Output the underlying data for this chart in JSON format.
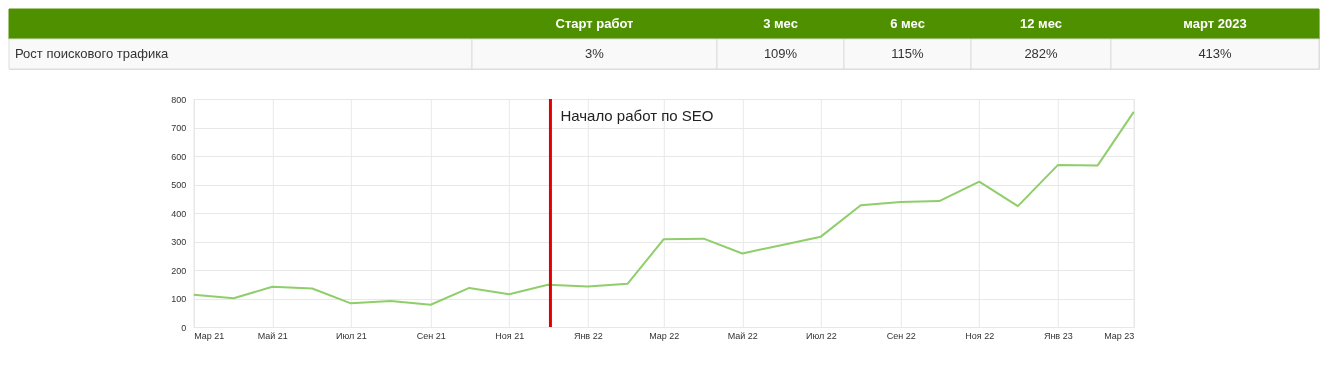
{
  "chart_data": [
    {
      "type": "other",
      "ylabel": "Рост поискового трафика",
      "color": "#4e9000",
      "categories": [
        "Старт работ",
        "3 мес",
        "6 мес",
        "12 мес",
        "март 2023"
      ],
      "value_labels": [
        "3%",
        "109%",
        "115%",
        "282%",
        "413%"
      ]
    },
    {
      "type": "line",
      "x": [
        "2021-03",
        "2021-04",
        "2021-05",
        "2021-06",
        "2021-07",
        "2021-08",
        "2021-09",
        "2021-10",
        "2021-11",
        "2021-12",
        "2022-01",
        "2022-02",
        "2022-03",
        "2022-04",
        "2022-05",
        "2022-06",
        "2022-07",
        "2022-08",
        "2022-09",
        "2022-10",
        "2022-11",
        "2022-12",
        "2023-01",
        "2023-02",
        "2023-03"
      ],
      "series": [
        {
          "color": "#8fce6b",
          "values": [
            113,
            101,
            141,
            135,
            83,
            91,
            78,
            137,
            115,
            148,
            142,
            152,
            308,
            310,
            258,
            288,
            317,
            427,
            439,
            442,
            510,
            424,
            568,
            567,
            755
          ]
        }
      ],
      "xlim": [
        "2021-03",
        "2023-03"
      ],
      "xticks": [
        {
          "value": "2021-03",
          "label": "Мар 21"
        },
        {
          "value": "2021-05",
          "label": "Май 21"
        },
        {
          "value": "2021-07",
          "label": "Июл 21"
        },
        {
          "value": "2021-09",
          "label": "Сен 21"
        },
        {
          "value": "2021-11",
          "label": "Ноя 21"
        },
        {
          "value": "2022-01",
          "label": "Янв 22"
        },
        {
          "value": "2022-03",
          "label": "Мар 22"
        },
        {
          "value": "2022-05",
          "label": "Май 22"
        },
        {
          "value": "2022-07",
          "label": "Июл 22"
        },
        {
          "value": "2022-09",
          "label": "Сен 22"
        },
        {
          "value": "2022-11",
          "label": "Ноя 22"
        },
        {
          "value": "2023-01",
          "label": "Янв 23"
        },
        {
          "value": "2023-03",
          "label": "Мар 23"
        }
      ],
      "ylim": [
        0,
        800
      ],
      "yticks": [
        0,
        100,
        200,
        300,
        400,
        500,
        600,
        700,
        800
      ],
      "grid": true,
      "marker": "none",
      "line_style": "solid",
      "ref_lines": [
        {
          "axis": "x",
          "value": "2021-12-03",
          "label": "Начало работ по SEO",
          "color": "#e00000",
          "line_style": "solid"
        }
      ]
    }
  ]
}
